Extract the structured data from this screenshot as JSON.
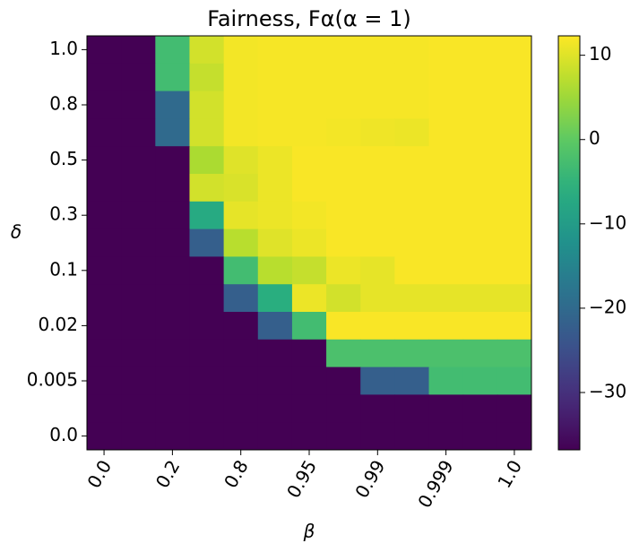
{
  "chart_data": {
    "type": "heatmap",
    "title": "Fairness, Fα(α = 1)",
    "x_label": "β",
    "y_label": "δ",
    "x": [
      "0.0",
      null,
      "0.2",
      null,
      "0.8",
      null,
      "0.95",
      null,
      "0.99",
      null,
      "0.999",
      null,
      "1.0"
    ],
    "y": [
      "1.0",
      null,
      "0.8",
      null,
      "0.5",
      null,
      "0.3",
      null,
      "0.1",
      null,
      "0.02",
      null,
      "0.005",
      null,
      "0.0"
    ],
    "values": [
      [
        -36.8,
        -36.8,
        -3,
        9,
        11.5,
        11.8,
        11.8,
        11.8,
        11.8,
        11.8,
        12,
        12,
        12
      ],
      [
        -36.8,
        -36.8,
        -3,
        8,
        11.5,
        11.8,
        11.8,
        11.8,
        11.8,
        11.8,
        12,
        12,
        12
      ],
      [
        -36.8,
        -36.8,
        -20,
        9,
        11.5,
        11.8,
        11.8,
        11.8,
        11.8,
        11.8,
        12,
        12,
        12
      ],
      [
        -36.8,
        -36.8,
        -20,
        9,
        11.5,
        11.8,
        11.8,
        11.5,
        11.2,
        11,
        12,
        12,
        12
      ],
      [
        -36.8,
        -36.8,
        -36.8,
        6,
        10,
        11,
        12,
        12,
        12,
        12,
        12,
        12,
        12
      ],
      [
        -36.8,
        -36.8,
        -36.8,
        9,
        9.5,
        11,
        12,
        12,
        12,
        12,
        12,
        12,
        12
      ],
      [
        -36.8,
        -36.8,
        -36.8,
        -7,
        10.5,
        11,
        11.5,
        12,
        12,
        12,
        12,
        12,
        12
      ],
      [
        -36.8,
        -36.8,
        -36.8,
        -22,
        7,
        10,
        11,
        12,
        12,
        12,
        12,
        12,
        12
      ],
      [
        -36.8,
        -36.8,
        -36.8,
        -36.8,
        -3,
        7,
        8,
        11,
        10.5,
        12,
        12,
        12,
        12
      ],
      [
        -36.8,
        -36.8,
        -36.8,
        -36.8,
        -22,
        -6,
        11,
        9,
        10.5,
        10.5,
        10.5,
        10.5,
        10.5
      ],
      [
        -36.8,
        -36.8,
        -36.8,
        -36.8,
        -36.8,
        -22,
        -3,
        12,
        12,
        12,
        12,
        12,
        12
      ],
      [
        -36.8,
        -36.8,
        -36.8,
        -36.8,
        -36.8,
        -36.8,
        -36.8,
        -2,
        -2,
        -2,
        -2,
        -2,
        -2
      ],
      [
        -36.8,
        -36.8,
        -36.8,
        -36.8,
        -36.8,
        -36.8,
        -36.8,
        -36.8,
        -22,
        -22,
        -3,
        -3,
        -3
      ],
      [
        -36.8,
        -36.8,
        -36.8,
        -36.8,
        -36.8,
        -36.8,
        -36.8,
        -36.8,
        -36.8,
        -36.8,
        -36.8,
        -36.8,
        -36.8
      ],
      [
        -36.8,
        -36.8,
        -36.8,
        -36.8,
        -36.8,
        -36.8,
        -36.8,
        -36.8,
        -36.8,
        -36.8,
        -36.8,
        -36.8,
        -36.8
      ]
    ],
    "colormap": "viridis",
    "zlim": [
      -36.8,
      12.3
    ],
    "colorbar_ticks": [
      {
        "value": -30,
        "label": "−30"
      },
      {
        "value": -20,
        "label": "−20"
      },
      {
        "value": -10,
        "label": "−10"
      },
      0,
      10
    ]
  }
}
